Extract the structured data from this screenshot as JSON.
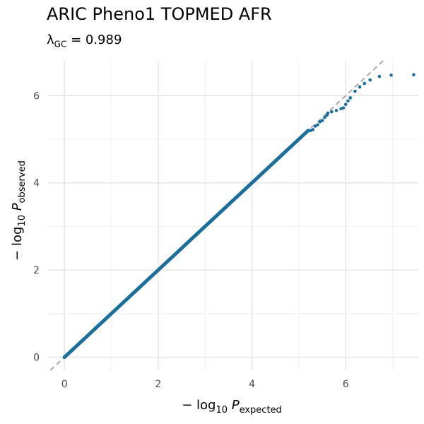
{
  "chart_data": {
    "type": "scatter",
    "title": "ARIC Pheno1 TOPMED AFR",
    "subtitle": {
      "lambda_symbol": "λ",
      "lambda_subscript": "GC",
      "lambda_text": "= 0.989"
    },
    "xlabel": {
      "prefix": "− log",
      "base": "10",
      "var": "P",
      "subscript": "expected"
    },
    "ylabel": {
      "prefix": "− log",
      "base": "10",
      "var": "P",
      "subscript": "observed"
    },
    "xlim": [
      -0.35,
      7.55
    ],
    "ylim": [
      -0.3,
      6.8
    ],
    "x_ticks": [
      0,
      2,
      4,
      6
    ],
    "y_ticks": [
      0,
      2,
      4,
      6
    ],
    "grid": true,
    "reference_line": {
      "slope": 1,
      "intercept": 0,
      "style": "dashed",
      "color": "#aaaaaa"
    },
    "point_color": "#1b6f9a",
    "series": [
      {
        "bulk_line": {
          "from": [
            0,
            0
          ],
          "to": [
            5.2,
            5.2
          ]
        },
        "points": [
          {
            "x": 5.25,
            "y": 5.2
          },
          {
            "x": 5.3,
            "y": 5.22
          },
          {
            "x": 5.35,
            "y": 5.3
          },
          {
            "x": 5.4,
            "y": 5.33
          },
          {
            "x": 5.45,
            "y": 5.4
          },
          {
            "x": 5.5,
            "y": 5.43
          },
          {
            "x": 5.55,
            "y": 5.5
          },
          {
            "x": 5.6,
            "y": 5.55
          },
          {
            "x": 5.62,
            "y": 5.6
          },
          {
            "x": 5.7,
            "y": 5.63
          },
          {
            "x": 5.8,
            "y": 5.66
          },
          {
            "x": 5.9,
            "y": 5.7
          },
          {
            "x": 5.95,
            "y": 5.72
          },
          {
            "x": 6.0,
            "y": 5.8
          },
          {
            "x": 6.05,
            "y": 5.88
          },
          {
            "x": 6.1,
            "y": 5.95
          },
          {
            "x": 6.2,
            "y": 6.1
          },
          {
            "x": 6.3,
            "y": 6.2
          },
          {
            "x": 6.4,
            "y": 6.28
          },
          {
            "x": 6.52,
            "y": 6.36
          },
          {
            "x": 6.72,
            "y": 6.44
          },
          {
            "x": 6.97,
            "y": 6.47
          },
          {
            "x": 7.45,
            "y": 6.48
          }
        ]
      }
    ]
  }
}
